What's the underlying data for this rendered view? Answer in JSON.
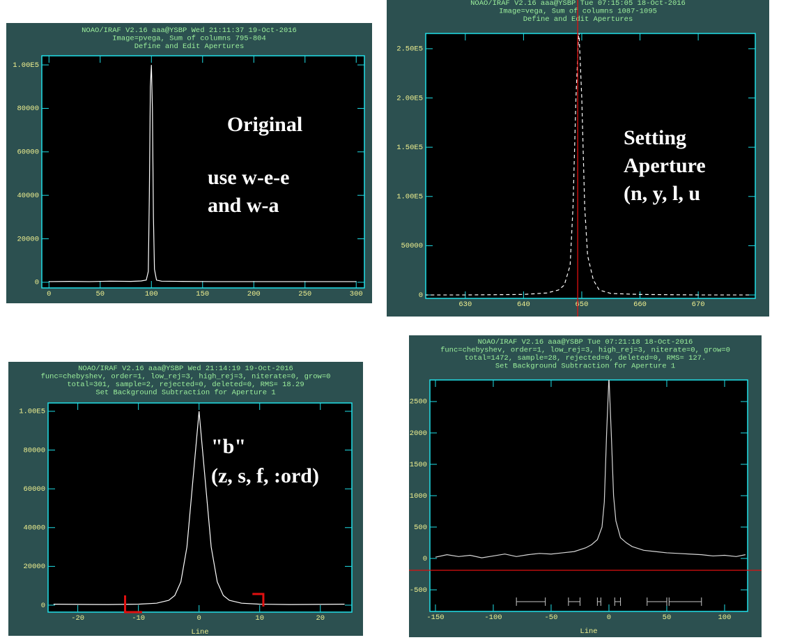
{
  "chart_data": [
    {
      "type": "line",
      "header": [
        "NOAO/IRAF V2.16 aaa@YSBP Wed 21:11:37 19-Oct-2016",
        "Image=pvega, Sum of columns 795-804",
        "Define and Edit Apertures"
      ],
      "annotations": [
        "Original",
        "use w-e-e",
        "and w-a"
      ],
      "x": [
        0,
        20,
        40,
        60,
        80,
        90,
        95,
        97,
        98,
        99,
        100,
        101,
        102,
        103,
        105,
        110,
        130,
        160,
        200,
        250,
        300
      ],
      "values": [
        300,
        400,
        300,
        500,
        400,
        600,
        1000,
        5000,
        40000,
        90000,
        100000,
        80000,
        30000,
        6000,
        1000,
        500,
        400,
        300,
        300,
        300,
        300
      ],
      "color": "#ffffff",
      "xlim": [
        -7,
        308
      ],
      "xticks": [
        0,
        50,
        100,
        150,
        200,
        250,
        300
      ],
      "ylim": [
        -2600,
        104200
      ],
      "yticks": [
        0,
        20000,
        40000,
        60000,
        80000,
        {
          "value": 100000,
          "label": "1.00E5"
        }
      ]
    },
    {
      "type": "line",
      "header": [
        "NOAO/IRAF V2.16 aaa@YSBP Tue 07:15:05 18-Oct-2016",
        "Image=vega, Sum of columns 1087-1095",
        "Define and Edit Apertures"
      ],
      "annotations": [
        "Setting",
        "Aperture",
        "(n, y, l, u"
      ],
      "x": [
        623,
        630,
        640,
        644,
        646,
        647,
        648,
        648.5,
        649,
        649.5,
        650,
        650.5,
        651,
        652,
        653,
        655,
        660,
        670,
        679
      ],
      "values": [
        0,
        0,
        500,
        2000,
        5000,
        10000,
        30000,
        90000,
        200000,
        270000,
        200000,
        90000,
        40000,
        15000,
        5000,
        1500,
        500,
        0,
        0
      ],
      "color": "#ffffff",
      "line_style": "dashed",
      "aperture_center": 649.3,
      "aperture_color": "#e01010",
      "xlim": [
        623.2,
        679.8
      ],
      "xticks": [
        630,
        640,
        650,
        660,
        670
      ],
      "ylim": [
        -3500,
        265500
      ],
      "yticks": [
        0,
        50000,
        {
          "value": 100000,
          "label": "1.00E5"
        },
        {
          "value": 150000,
          "label": "1.50E5"
        },
        {
          "value": 200000,
          "label": "2.00E5"
        },
        {
          "value": 250000,
          "label": "2.50E5"
        }
      ]
    },
    {
      "type": "line",
      "header": [
        "NOAO/IRAF V2.16 aaa@YSBP Wed 21:14:19 19-Oct-2016",
        "func=chebyshev, order=1, low_rej=3, high_rej=3, niterate=0, grow=0",
        "total=301, sample=2, rejected=0, deleted=0, RMS=  18.29",
        "Set Background Subtraction for Aperture 1"
      ],
      "annotations": [
        "\"b\"",
        "(z, s, f, :ord)"
      ],
      "xlabel": "Line",
      "x": [
        -24,
        -20,
        -15,
        -10,
        -7,
        -5,
        -4,
        -3,
        -2,
        -1,
        0,
        1,
        2,
        3,
        4,
        5,
        7,
        10,
        15,
        20,
        24
      ],
      "values": [
        500,
        400,
        300,
        500,
        1000,
        2500,
        5000,
        12000,
        30000,
        65000,
        100000,
        65000,
        30000,
        12000,
        5000,
        2500,
        1000,
        500,
        300,
        400,
        500
      ],
      "color": "#ffffff",
      "sample_regions": [
        [
          -12.2,
          -9.4
        ],
        [
          8.8,
          10.6
        ]
      ],
      "sample_color": "#e01010",
      "xlim": [
        -24.9,
        25.2
      ],
      "xticks": [
        -20,
        -10,
        0,
        10,
        20
      ],
      "ylim": [
        -3600,
        104300
      ],
      "yticks": [
        0,
        20000,
        40000,
        60000,
        80000,
        {
          "value": 100000,
          "label": "1.00E5"
        }
      ]
    },
    {
      "type": "line",
      "header": [
        "NOAO/IRAF V2.16 aaa@YSBP Tue 07:21:18 18-Oct-2016",
        "func=chebyshev, order=1, low_rej=3, high_rej=3, niterate=0, grow=0",
        "total=1472, sample=28, rejected=0, deleted=0, RMS=   127.",
        "Set Background Subtraction for Aperture 1"
      ],
      "xlabel": "Line",
      "x": [
        -150,
        -140,
        -130,
        -120,
        -110,
        -100,
        -90,
        -80,
        -70,
        -60,
        -50,
        -40,
        -30,
        -20,
        -15,
        -10,
        -6,
        -4,
        -2,
        0,
        2,
        4,
        6,
        10,
        15,
        20,
        30,
        40,
        50,
        60,
        70,
        80,
        90,
        100,
        110,
        118
      ],
      "values": [
        20,
        60,
        30,
        50,
        10,
        40,
        70,
        30,
        60,
        80,
        70,
        90,
        110,
        170,
        220,
        300,
        500,
        900,
        2000,
        2900,
        2000,
        1000,
        600,
        330,
        250,
        190,
        130,
        110,
        90,
        80,
        70,
        60,
        40,
        50,
        30,
        60
      ],
      "color": "#d8d8d8",
      "sample_regions": [
        [
          -80,
          -55
        ],
        [
          -35,
          -25
        ],
        [
          -10,
          -7
        ],
        [
          5,
          10
        ],
        [
          33,
          50
        ],
        [
          52,
          80
        ]
      ],
      "sample_color": "#c8c8c8",
      "reference_level": -189,
      "reference_color": "#e01010",
      "xlim": [
        -154.8,
        119.9
      ],
      "xticks": [
        -150,
        -100,
        -50,
        0,
        50,
        100
      ],
      "ylim": [
        -844,
        2844
      ],
      "yticks": [
        -500,
        0,
        500,
        1000,
        1500,
        2000,
        2500
      ]
    }
  ]
}
